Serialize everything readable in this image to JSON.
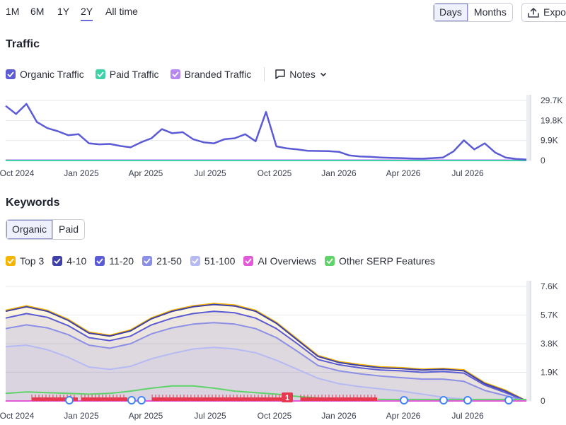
{
  "ranges": [
    "1M",
    "6M",
    "1Y",
    "2Y",
    "All time"
  ],
  "active_range": "2Y",
  "granularity": {
    "options": [
      "Days",
      "Months"
    ],
    "active": "Days"
  },
  "export_label": "Expo",
  "traffic": {
    "title": "Traffic",
    "legend": [
      {
        "label": "Organic Traffic",
        "color": "#5b5bd6"
      },
      {
        "label": "Paid Traffic",
        "color": "#3fd1a8"
      },
      {
        "label": "Branded Traffic",
        "color": "#b987f0"
      }
    ],
    "notes_label": "Notes"
  },
  "keywords": {
    "title": "Keywords",
    "tabs": [
      "Organic",
      "Paid"
    ],
    "active_tab": "Organic",
    "legend": [
      {
        "label": "Top 3",
        "color": "#f5b400"
      },
      {
        "label": "4-10",
        "color": "#3f3fa8"
      },
      {
        "label": "11-20",
        "color": "#5b5bd6"
      },
      {
        "label": "21-50",
        "color": "#8c8fe6"
      },
      {
        "label": "51-100",
        "color": "#b6baf2"
      },
      {
        "label": "AI Overviews",
        "color": "#e25ad8"
      },
      {
        "label": "Other SERP Features",
        "color": "#5fd36a"
      }
    ],
    "marker_label": "1"
  },
  "chart_data": [
    {
      "type": "line",
      "title": "Traffic",
      "x_ticks": [
        "Oct 2024",
        "Jan 2025",
        "Apr 2025",
        "Jul 2025",
        "Oct 2025",
        "Jan 2026",
        "Apr 2026",
        "Jul 2026"
      ],
      "y_ticks": [
        "29.7K",
        "19.8K",
        "9.9K",
        "0"
      ],
      "ylim": [
        0,
        29700
      ],
      "x": [
        0,
        2,
        4,
        6,
        8,
        10,
        12,
        14,
        16,
        18,
        20,
        22,
        24,
        26,
        28,
        30,
        32,
        34,
        36,
        38,
        40,
        42,
        44,
        46,
        48,
        50,
        52,
        54,
        56,
        58,
        60,
        62,
        64,
        66,
        68,
        70,
        72,
        74,
        76,
        78,
        80,
        82,
        84,
        86,
        88,
        90,
        92,
        94,
        96,
        98,
        100
      ],
      "series": [
        {
          "name": "Organic Traffic",
          "color": "#5b5bd6",
          "values": [
            27000,
            23000,
            28000,
            19000,
            16000,
            14500,
            12500,
            13000,
            8500,
            8000,
            8200,
            7200,
            6500,
            9000,
            11000,
            15500,
            13500,
            14000,
            10500,
            9000,
            8500,
            10500,
            11000,
            13000,
            9500,
            24000,
            7000,
            6000,
            5500,
            4800,
            4700,
            4600,
            4300,
            2500,
            2000,
            1800,
            1500,
            1300,
            1200,
            1000,
            900,
            1200,
            1500,
            4500,
            10000,
            5500,
            8500,
            4000,
            1500,
            800,
            500
          ]
        },
        {
          "name": "Paid Traffic",
          "color": "#3fd1a8",
          "values": [
            0,
            0,
            0,
            0,
            0,
            0,
            0,
            0,
            0,
            0,
            0,
            0,
            0,
            0,
            0,
            0,
            0,
            0,
            0,
            0,
            0,
            0,
            0,
            0,
            0,
            0,
            0,
            0,
            0,
            0,
            0,
            0,
            0,
            0,
            0,
            0,
            0,
            0,
            0,
            0,
            0,
            0,
            0,
            0,
            0,
            0,
            0,
            0,
            0,
            0,
            0
          ]
        },
        {
          "name": "Branded Traffic",
          "color": "#b987f0",
          "values": [
            200,
            200,
            200,
            200,
            200,
            200,
            200,
            200,
            200,
            200,
            200,
            200,
            200,
            200,
            200,
            200,
            200,
            200,
            200,
            200,
            200,
            200,
            200,
            200,
            200,
            200,
            200,
            200,
            200,
            200,
            200,
            200,
            200,
            200,
            200,
            200,
            200,
            200,
            200,
            200,
            200,
            200,
            200,
            200,
            200,
            200,
            200,
            200,
            200,
            200,
            200
          ]
        }
      ]
    },
    {
      "type": "area",
      "title": "Keywords",
      "x_ticks": [
        "Oct 2024",
        "Jan 2025",
        "Apr 2025",
        "Jul 2025",
        "Oct 2025",
        "Jan 2026",
        "Apr 2026",
        "Jul 2026"
      ],
      "y_ticks": [
        "7.6K",
        "5.7K",
        "3.8K",
        "1.9K",
        "0"
      ],
      "ylim": [
        0,
        7600
      ],
      "x": [
        0,
        4,
        8,
        12,
        16,
        20,
        24,
        28,
        32,
        36,
        40,
        44,
        48,
        52,
        56,
        60,
        64,
        68,
        72,
        76,
        80,
        84,
        88,
        92,
        96,
        100
      ],
      "series": [
        {
          "name": "Top 3",
          "color": "#f5b400",
          "values": [
            6000,
            6300,
            6000,
            5400,
            4550,
            4350,
            4700,
            5500,
            6000,
            6300,
            6450,
            6350,
            6000,
            5200,
            4100,
            3000,
            2600,
            2400,
            2250,
            2200,
            2100,
            2150,
            2050,
            1200,
            700,
            0
          ]
        },
        {
          "name": "4-10",
          "color": "#3f3fa8",
          "values": [
            5950,
            6250,
            5950,
            5350,
            4500,
            4300,
            4650,
            5450,
            5950,
            6250,
            6400,
            6300,
            5950,
            5150,
            4050,
            2950,
            2550,
            2350,
            2200,
            2150,
            2050,
            2100,
            2000,
            1150,
            650,
            0
          ]
        },
        {
          "name": "11-20",
          "color": "#5b5bd6",
          "values": [
            5500,
            5800,
            5550,
            5000,
            4200,
            4000,
            4300,
            5050,
            5500,
            5800,
            5950,
            5850,
            5500,
            4800,
            3800,
            2750,
            2400,
            2200,
            2050,
            2000,
            1900,
            1950,
            1850,
            1050,
            550,
            0
          ]
        },
        {
          "name": "21-50",
          "color": "#8c8fe6",
          "values": [
            4800,
            5050,
            4850,
            4400,
            3700,
            3500,
            3800,
            4450,
            4850,
            5100,
            5200,
            5100,
            4800,
            4200,
            3300,
            2350,
            2000,
            1800,
            1650,
            1550,
            1450,
            1450,
            1300,
            700,
            350,
            0
          ]
        },
        {
          "name": "51-100",
          "color": "#b6baf2",
          "values": [
            3600,
            3700,
            3400,
            2900,
            2250,
            2100,
            2300,
            2800,
            3150,
            3450,
            3550,
            3450,
            3200,
            2700,
            2100,
            1500,
            1150,
            950,
            800,
            650,
            450,
            250,
            120,
            50,
            20,
            0
          ]
        },
        {
          "name": "AI Overviews",
          "color": "#e25ad8",
          "values": [
            0,
            0,
            0,
            0,
            0,
            0,
            0,
            0,
            0,
            0,
            0,
            0,
            0,
            0,
            0,
            0,
            0,
            0,
            0,
            0,
            0,
            0,
            0,
            0,
            0,
            0
          ]
        },
        {
          "name": "Other SERP Features",
          "color": "#5fd36a",
          "values": [
            500,
            600,
            550,
            500,
            450,
            500,
            650,
            850,
            1000,
            1000,
            850,
            650,
            550,
            450,
            300,
            200,
            150,
            120,
            100,
            100,
            100,
            100,
            100,
            100,
            100,
            100
          ]
        }
      ]
    }
  ]
}
